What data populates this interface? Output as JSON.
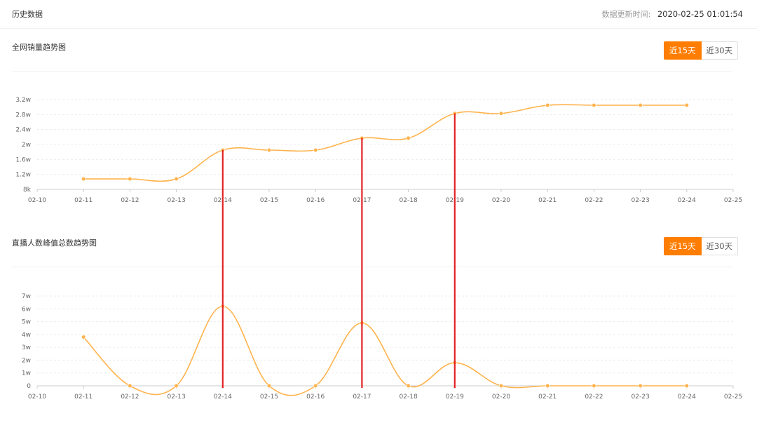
{
  "header": {
    "title": "历史数据",
    "update_label": "数据更新时间:",
    "update_time": "2020-02-25 01:01:54"
  },
  "colors": {
    "line": "#ffb34d",
    "accent": "#ff7d00",
    "marker": "#e52222",
    "grid": "#ececec"
  },
  "chart_data": [
    {
      "type": "line",
      "title": "全网销量趋势图",
      "toggle": {
        "options": [
          "近15天",
          "近30天"
        ],
        "selected": "近15天"
      },
      "x_ticks": [
        "02-10",
        "02-11",
        "02-12",
        "02-13",
        "02-14",
        "02-15",
        "02-16",
        "02-17",
        "02-18",
        "02-19",
        "02-20",
        "02-21",
        "02-22",
        "02-23",
        "02-24",
        "02-25"
      ],
      "x": [
        "02-11",
        "02-12",
        "02-13",
        "02-14",
        "02-15",
        "02-16",
        "02-17",
        "02-18",
        "02-19",
        "02-20",
        "02-21",
        "02-22",
        "02-23",
        "02-24"
      ],
      "values": [
        10800,
        10800,
        10800,
        18500,
        18500,
        18500,
        21700,
        21700,
        28300,
        28300,
        30500,
        30500,
        30500,
        30500
      ],
      "y_ticks": [
        {
          "v": 8000,
          "label": "8k"
        },
        {
          "v": 12000,
          "label": "1.2w"
        },
        {
          "v": 16000,
          "label": "1.6w"
        },
        {
          "v": 20000,
          "label": "2w"
        },
        {
          "v": 24000,
          "label": "2.4w"
        },
        {
          "v": 28000,
          "label": "2.8w"
        },
        {
          "v": 32000,
          "label": "3.2w"
        }
      ],
      "ylim": [
        8000,
        32000
      ],
      "grid": true
    },
    {
      "type": "line",
      "title": "直播人数峰值总数趋势图",
      "toggle": {
        "options": [
          "近15天",
          "近30天"
        ],
        "selected": "近15天"
      },
      "x_ticks": [
        "02-10",
        "02-11",
        "02-12",
        "02-13",
        "02-14",
        "02-15",
        "02-16",
        "02-17",
        "02-18",
        "02-19",
        "02-20",
        "02-21",
        "02-22",
        "02-23",
        "02-24",
        "02-25"
      ],
      "x": [
        "02-11",
        "02-12",
        "02-13",
        "02-14",
        "02-15",
        "02-16",
        "02-17",
        "02-18",
        "02-19",
        "02-20",
        "02-21",
        "02-22",
        "02-23",
        "02-24"
      ],
      "values": [
        38000,
        0,
        0,
        62000,
        0,
        0,
        49000,
        0,
        18000,
        0,
        0,
        0,
        0,
        0
      ],
      "y_ticks": [
        {
          "v": 0,
          "label": "0"
        },
        {
          "v": 10000,
          "label": "1w"
        },
        {
          "v": 20000,
          "label": "2w"
        },
        {
          "v": 30000,
          "label": "3w"
        },
        {
          "v": 40000,
          "label": "4w"
        },
        {
          "v": 50000,
          "label": "5w"
        },
        {
          "v": 60000,
          "label": "6w"
        },
        {
          "v": 70000,
          "label": "7w"
        }
      ],
      "ylim": [
        0,
        70000
      ],
      "grid": true
    }
  ],
  "markers": [
    "02-14",
    "02-17",
    "02-19"
  ]
}
